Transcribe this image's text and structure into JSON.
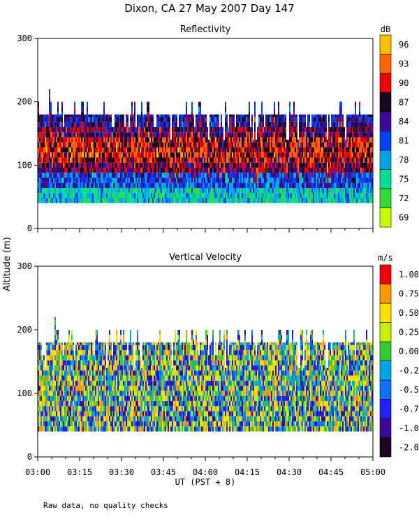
{
  "title": "Dixon, CA 27 May 2007  Day 147",
  "footnote": "Raw data, no quality checks",
  "chart_data": [
    {
      "type": "heatmap",
      "title": "Reflectivity",
      "ylabel": "Altitude (m)",
      "xlabel": "UT  (PST + 8)",
      "x_ticks": [
        "03:00",
        "03:15",
        "03:30",
        "03:45",
        "04:00",
        "04:15",
        "04:30",
        "04:45",
        "05:00"
      ],
      "x_range": [
        "03:00",
        "05:00"
      ],
      "ylim": [
        0,
        300
      ],
      "y_ticks": [
        0,
        100,
        200,
        300
      ],
      "colorbar": {
        "unit": "dB",
        "labels": [
          "69",
          "72",
          "75",
          "78",
          "81",
          "84",
          "87",
          "90",
          "93",
          "96"
        ],
        "colors": [
          "#c8ff00",
          "#33dd33",
          "#00e09a",
          "#00a8e8",
          "#0040ff",
          "#3b0a99",
          "#1a0620",
          "#ee0000",
          "#ff6600",
          "#ffc000"
        ]
      },
      "data_extent_m": {
        "bottom": 40,
        "typical_top": 180,
        "max_top": 220
      }
    },
    {
      "type": "heatmap",
      "title": "Vertical Velocity",
      "ylabel": "Altitude (m)",
      "xlabel": "UT  (PST + 8)",
      "x_ticks": [
        "03:00",
        "03:15",
        "03:30",
        "03:45",
        "04:00",
        "04:15",
        "04:30",
        "04:45",
        "05:00"
      ],
      "x_range": [
        "03:00",
        "05:00"
      ],
      "ylim": [
        0,
        300
      ],
      "y_ticks": [
        0,
        100,
        200,
        300
      ],
      "colorbar": {
        "unit": "m/s",
        "labels": [
          "-2.00",
          "-1.00",
          "-0.75",
          "-0.50",
          "-0.25",
          "0.00",
          "0.25",
          "0.50",
          "0.75",
          "1.00"
        ],
        "colors": [
          "#1a0620",
          "#3b0a99",
          "#2020ff",
          "#1070ff",
          "#00a8e8",
          "#33cc33",
          "#c8f000",
          "#ffe000",
          "#ff9900",
          "#ee0000"
        ]
      },
      "data_extent_m": {
        "bottom": 40,
        "typical_top": 180,
        "max_top": 220
      }
    }
  ]
}
